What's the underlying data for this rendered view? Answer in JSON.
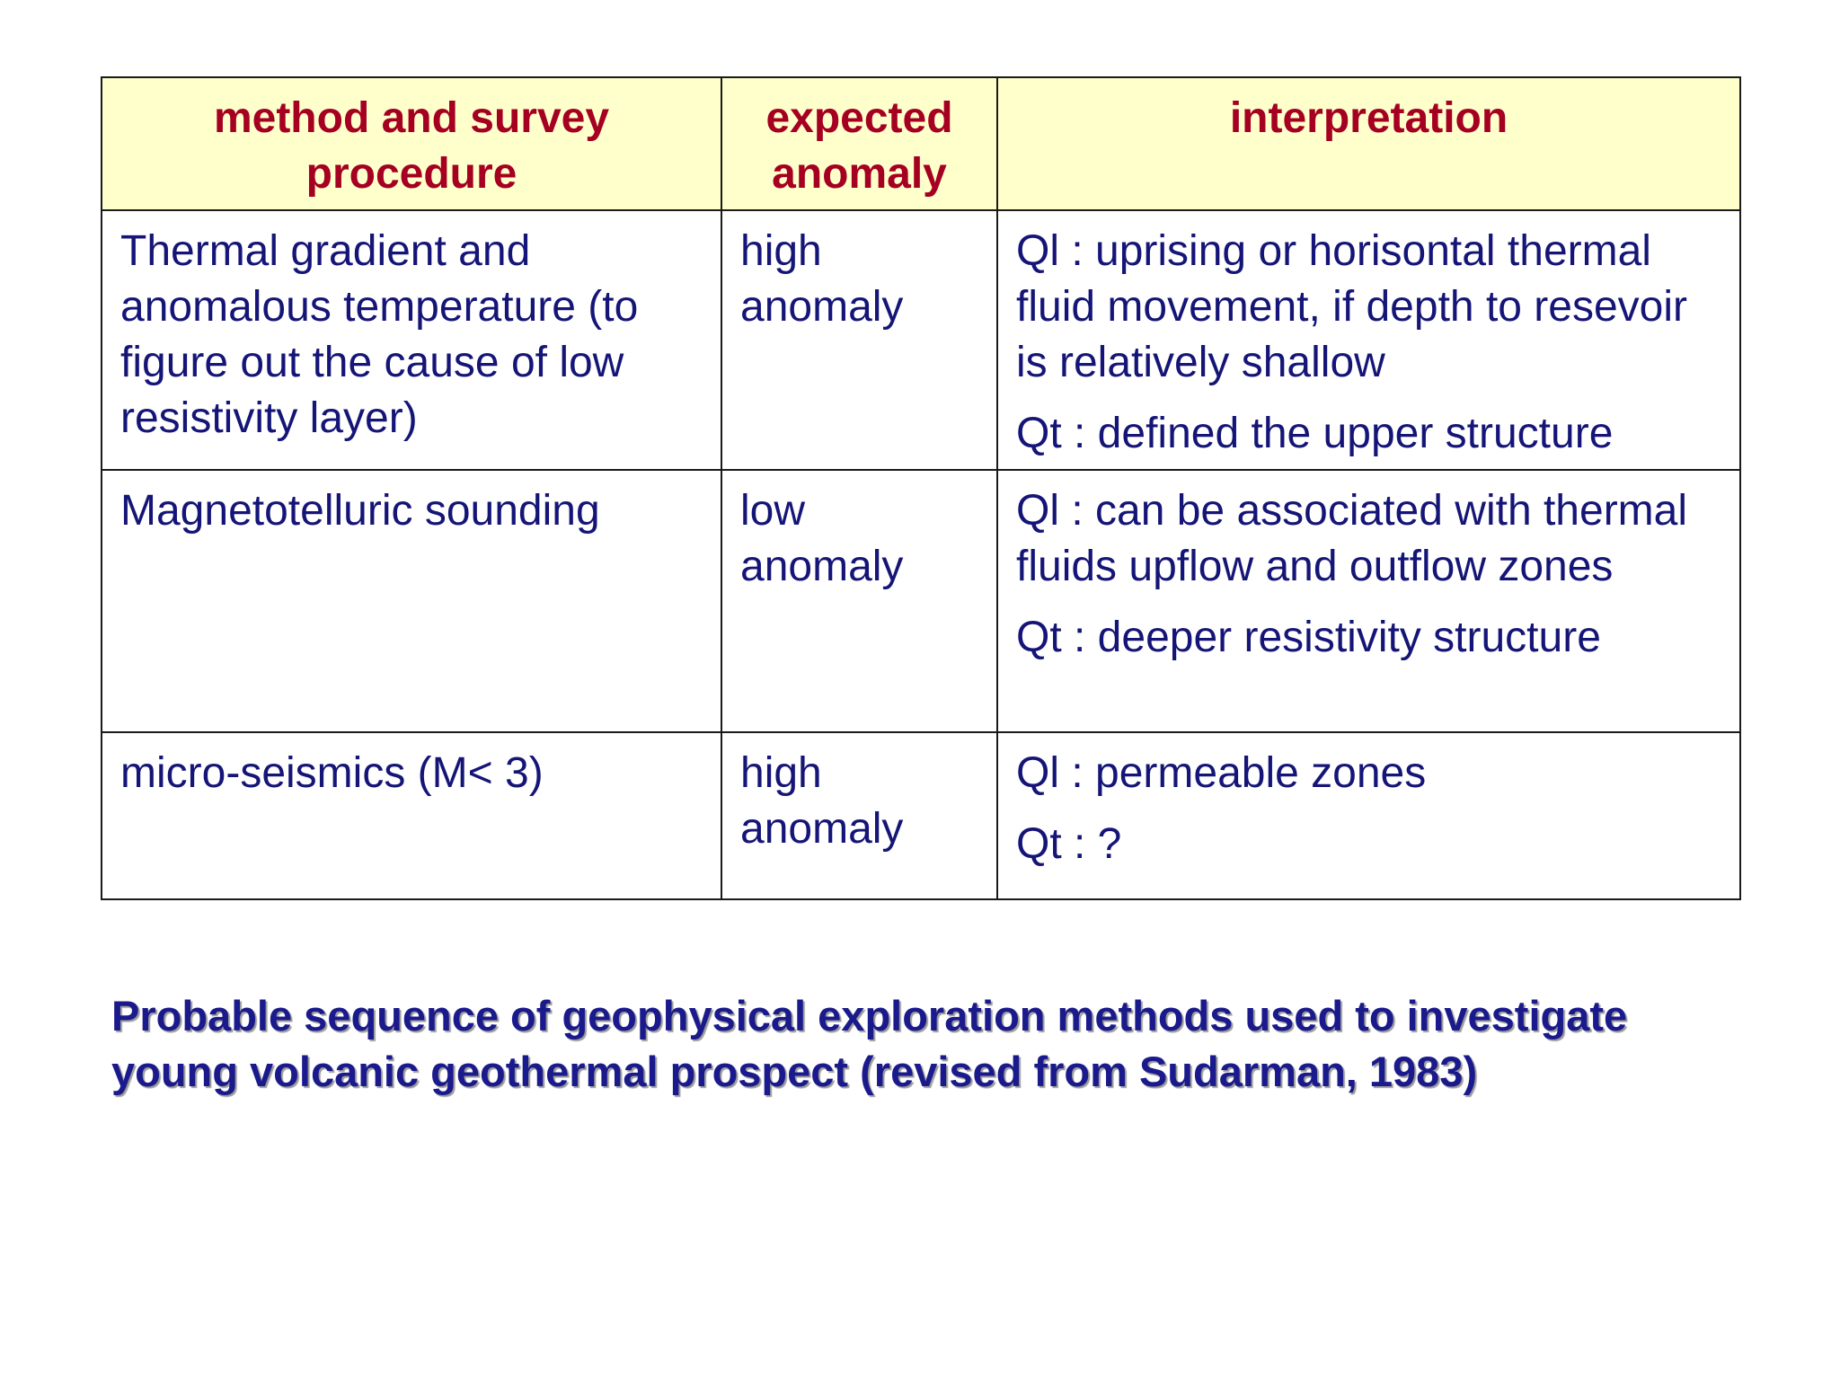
{
  "table": {
    "headers": [
      "method and survey procedure",
      "expected anomaly",
      "interpretation"
    ],
    "rows": [
      {
        "method": "Thermal gradient and anomalous temperature (to figure out the cause of low resistivity layer)",
        "anomaly": "high anomaly",
        "ql": "Ql : uprising or horisontal thermal fluid movement, if depth to resevoir is relatively shallow",
        "qt": "Qt : defined the upper structure"
      },
      {
        "method": "Magnetotelluric sounding",
        "anomaly": "low anomaly",
        "ql": "Ql : can be associated with thermal fluids upflow and outflow zones",
        "qt": "Qt : deeper resistivity structure"
      },
      {
        "method": "micro-seismics (M< 3)",
        "anomaly": "high anomaly",
        "ql": "Ql : permeable zones",
        "qt": "Qt : ?"
      }
    ]
  },
  "caption": "Probable sequence of geophysical exploration methods used to investigate young volcanic geothermal prospect (revised from Sudarman, 1983)",
  "colors": {
    "header_background": "#ffffcc",
    "header_text": "#a50021",
    "body_text": "#151577",
    "caption_text": "#1a1a8c"
  }
}
